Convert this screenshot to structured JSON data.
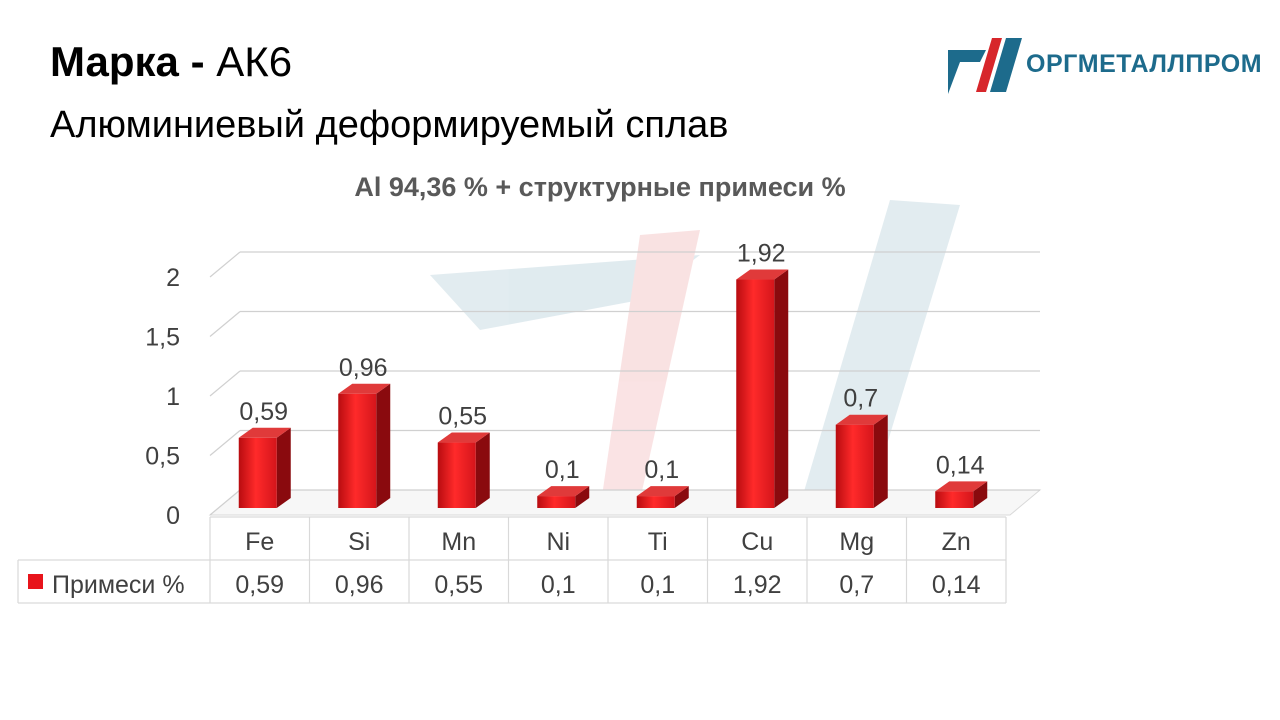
{
  "header": {
    "marka_label": "Марка",
    "separator": "-",
    "grade": "АК6",
    "subtitle": "Алюминиевый деформируемый сплав"
  },
  "logo": {
    "text": "ОРГМЕТАЛЛПРОМ",
    "colors": {
      "dark": "#1d6b8c",
      "accent": "#d7262b"
    }
  },
  "chart_data": {
    "type": "bar",
    "title": "Al 94,36 % + структурные примеси %",
    "categories": [
      "Fe",
      "Si",
      "Mn",
      "Ni",
      "Ti",
      "Cu",
      "Mg",
      "Zn"
    ],
    "series": [
      {
        "name": "Примеси %",
        "values": [
          0.59,
          0.96,
          0.55,
          0.1,
          0.1,
          1.92,
          0.7,
          0.14
        ],
        "labels": [
          "0,59",
          "0,96",
          "0,55",
          "0,1",
          "0,1",
          "1,92",
          "0,7",
          "0,14"
        ],
        "color": "#e8141b"
      }
    ],
    "yticks": [
      {
        "value": 0,
        "label": "0"
      },
      {
        "value": 0.5,
        "label": "0,5"
      },
      {
        "value": 1,
        "label": "1"
      },
      {
        "value": 1.5,
        "label": "1,5"
      },
      {
        "value": 2,
        "label": "2"
      }
    ],
    "ylim": [
      0,
      2
    ],
    "grid": true,
    "data_table": true,
    "bar_style": "3d"
  }
}
